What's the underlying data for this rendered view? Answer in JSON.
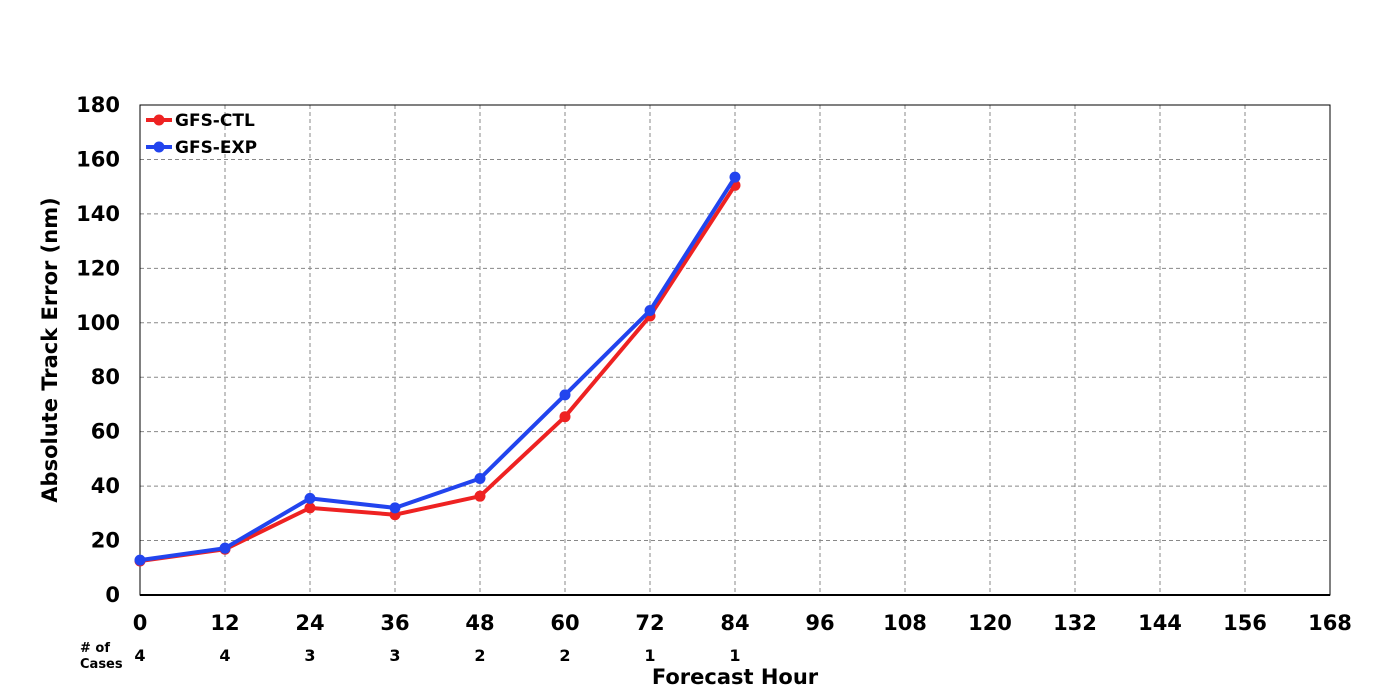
{
  "chart_data": {
    "type": "line",
    "xlabel": "Forecast Hour",
    "ylabel": "Absolute Track Error (nm)",
    "xlim": [
      0,
      168
    ],
    "ylim": [
      0,
      180
    ],
    "x_ticks": [
      0,
      12,
      24,
      36,
      48,
      60,
      72,
      84,
      96,
      108,
      120,
      132,
      144,
      156,
      168
    ],
    "y_ticks": [
      0,
      20,
      40,
      60,
      80,
      100,
      120,
      140,
      160,
      180
    ],
    "grid": true,
    "legend_position": "top-left",
    "cases_label": [
      "# of",
      "Cases"
    ],
    "cases": [
      {
        "x": 0,
        "n": "4"
      },
      {
        "x": 12,
        "n": "4"
      },
      {
        "x": 24,
        "n": "3"
      },
      {
        "x": 36,
        "n": "3"
      },
      {
        "x": 48,
        "n": "2"
      },
      {
        "x": 60,
        "n": "2"
      },
      {
        "x": 72,
        "n": "1"
      },
      {
        "x": 84,
        "n": "1"
      }
    ],
    "series": [
      {
        "name": "GFS-CTL",
        "color": "#ee2222",
        "x": [
          0,
          12,
          24,
          36,
          48,
          60,
          72,
          84
        ],
        "y": [
          12.5,
          16.8,
          32,
          29.5,
          36.3,
          65.5,
          102.5,
          150.5
        ]
      },
      {
        "name": "GFS-EXP",
        "color": "#2244ee",
        "x": [
          0,
          12,
          24,
          36,
          48,
          60,
          72,
          84
        ],
        "y": [
          12.8,
          17.2,
          35.5,
          32,
          42.8,
          73.5,
          104.5,
          153.5
        ]
      }
    ]
  }
}
